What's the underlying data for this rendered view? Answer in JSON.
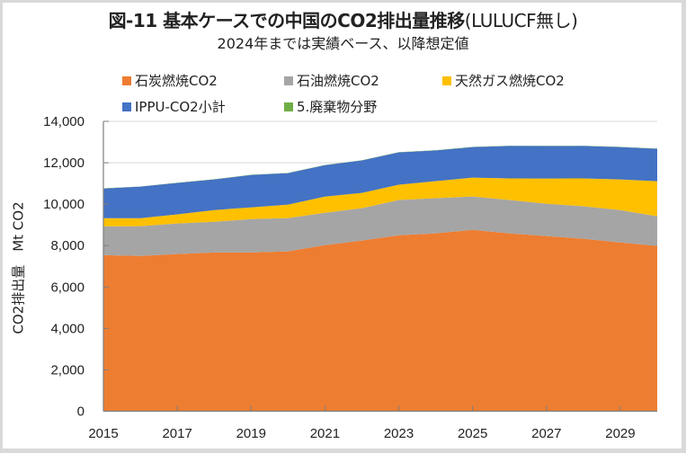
{
  "chart_data": {
    "type": "area",
    "stacked": true,
    "title": "図-11  基本ケースでの中国のCO2排出量推移",
    "title_suffix": "(LULUCF無し)",
    "subtitle": "2024年までは実績ベース、以降想定値",
    "xlabel": "",
    "ylabel": "CO2排出量　Mt CO2",
    "x": [
      2015,
      2016,
      2017,
      2018,
      2019,
      2020,
      2021,
      2022,
      2023,
      2024,
      2025,
      2026,
      2027,
      2028,
      2029,
      2030
    ],
    "xlim": [
      2015,
      2030
    ],
    "ylim": [
      0,
      14000
    ],
    "x_tick_labels": [
      "2015",
      "2017",
      "2019",
      "2021",
      "2023",
      "2025",
      "2027",
      "2029"
    ],
    "x_tick_values": [
      2015,
      2017,
      2019,
      2021,
      2023,
      2025,
      2027,
      2029
    ],
    "y_tick_labels": [
      "0",
      "2,000",
      "4,000",
      "6,000",
      "8,000",
      "10,000",
      "12,000",
      "14,000"
    ],
    "y_tick_values": [
      0,
      2000,
      4000,
      6000,
      8000,
      10000,
      12000,
      14000
    ],
    "grid": true,
    "legend_placement": "top",
    "series": [
      {
        "name": "石炭燃焼CO2",
        "color": "#ed7d31",
        "values": [
          7540,
          7500,
          7590,
          7670,
          7670,
          7720,
          8020,
          8240,
          8500,
          8590,
          8760,
          8590,
          8460,
          8330,
          8150,
          7980
        ]
      },
      {
        "name": "石油燃焼CO2",
        "color": "#a5a5a5",
        "values": [
          1390,
          1435,
          1480,
          1480,
          1610,
          1610,
          1565,
          1565,
          1700,
          1700,
          1610,
          1610,
          1565,
          1565,
          1565,
          1435
        ]
      },
      {
        "name": "天然ガス燃焼CO2",
        "color": "#ffc000",
        "values": [
          390,
          390,
          435,
          565,
          565,
          650,
          780,
          740,
          740,
          825,
          910,
          1045,
          1215,
          1350,
          1480,
          1695
        ]
      },
      {
        "name": "IPPU-CO2小計",
        "color": "#4472c4",
        "values": [
          1435,
          1520,
          1520,
          1480,
          1565,
          1520,
          1520,
          1565,
          1565,
          1480,
          1480,
          1565,
          1565,
          1565,
          1565,
          1565
        ]
      },
      {
        "name": "5.廃棄物分野",
        "color": "#70ad47",
        "values": [
          10,
          10,
          10,
          10,
          10,
          10,
          10,
          10,
          10,
          10,
          10,
          10,
          10,
          10,
          10,
          10
        ]
      }
    ]
  }
}
